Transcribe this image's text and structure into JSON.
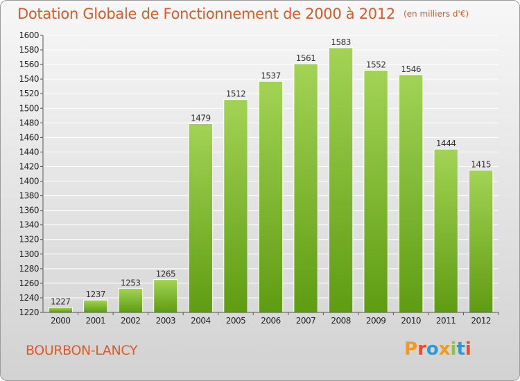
{
  "header": {
    "title": "Dotation Globale de Fonctionnement de 2000 à 2012",
    "unit": "(en milliers d'€)"
  },
  "footer": {
    "commune": "BOURBON-LANCY",
    "logo": "Proxiti",
    "logo_colors": [
      "#f39a1e",
      "#e94e2a",
      "#2d9ad6",
      "#f39a1e",
      "#8cc63f",
      "#2d9ad6",
      "#e94e2a"
    ]
  },
  "colors": {
    "bar_light": "#a3d355",
    "bar_dark": "#5e9c12",
    "grid": "#ffffff",
    "axis": "#555555"
  },
  "chart_data": {
    "type": "bar",
    "title": "Dotation Globale de Fonctionnement de 2000 à 2012",
    "subtitle": "(en milliers d'€)",
    "categories": [
      "2000",
      "2001",
      "2002",
      "2003",
      "2004",
      "2005",
      "2006",
      "2007",
      "2008",
      "2009",
      "2010",
      "2011",
      "2012"
    ],
    "values": [
      1227,
      1237,
      1253,
      1265,
      1479,
      1512,
      1537,
      1561,
      1583,
      1552,
      1546,
      1444,
      1415
    ],
    "ylim": [
      1220,
      1600
    ],
    "ytick_step": 20,
    "xlabel": "",
    "ylabel": "",
    "grid": true,
    "data_labels": true
  }
}
